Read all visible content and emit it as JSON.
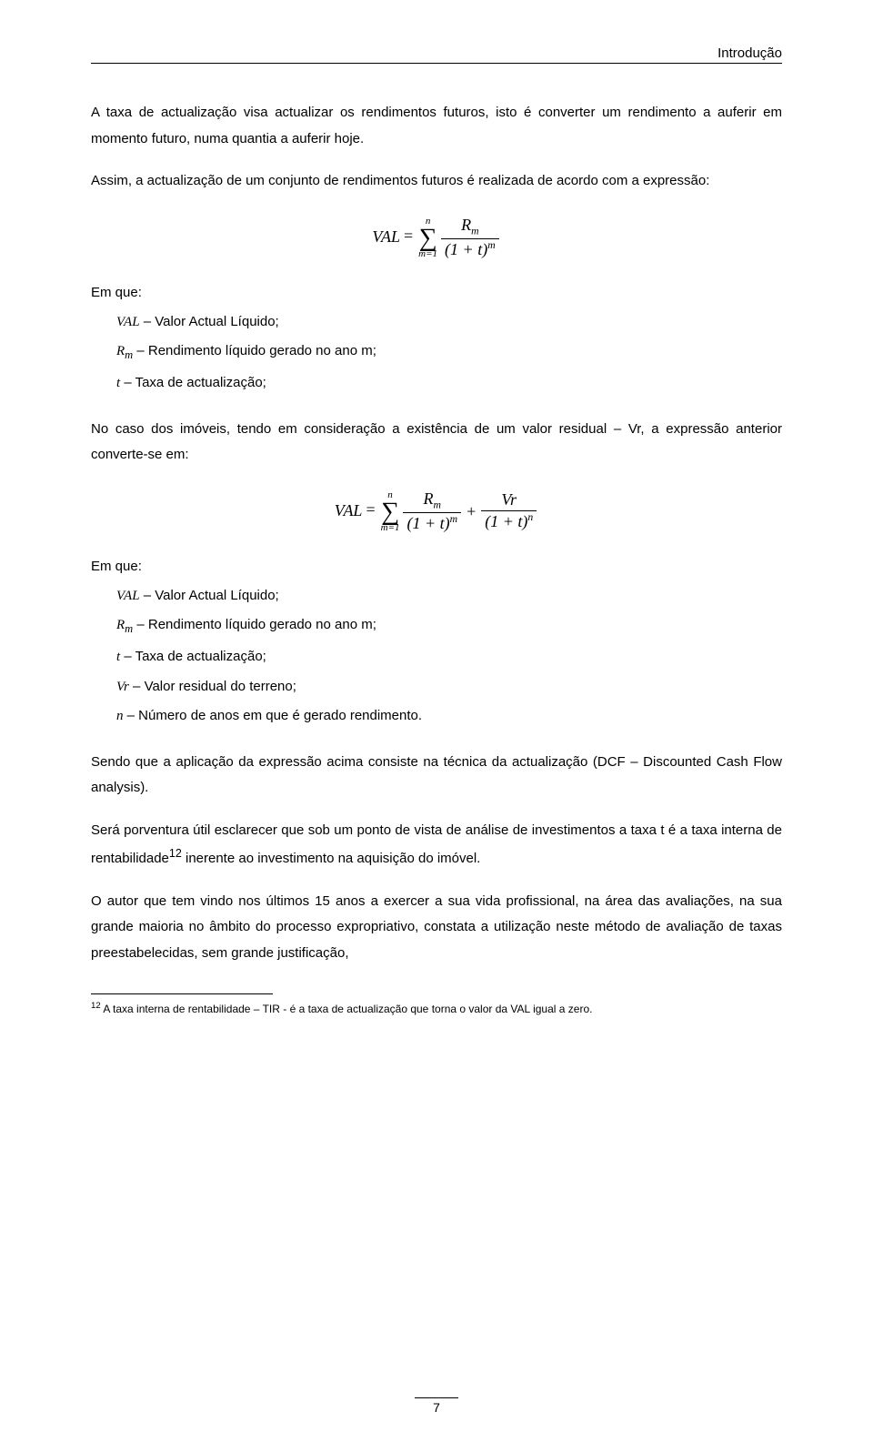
{
  "header": {
    "section": "Introdução"
  },
  "p1": "A taxa de actualização visa actualizar os rendimentos futuros, isto é converter um rendimento a auferir em momento futuro, numa quantia a auferir hoje.",
  "p2": "Assim, a actualização de um conjunto de rendimentos futuros é realizada de acordo com a expressão:",
  "formula1": {
    "lhs": "VAL",
    "sum_top": "n",
    "sum_bot": "m=1",
    "frac_num_base": "R",
    "frac_num_sub": "m",
    "frac_den_base": "(1 + t)",
    "frac_den_sup": "m"
  },
  "defs1": {
    "lead": "Em que:",
    "items": [
      {
        "var": "VAL",
        "desc": " – Valor Actual Líquido;"
      },
      {
        "var": "R",
        "sub": "m",
        "desc": " – Rendimento líquido gerado no ano m;"
      },
      {
        "var": "t",
        "desc": " – Taxa de actualização;"
      }
    ]
  },
  "p3": "No caso dos imóveis, tendo em consideração a existência de um valor residual – Vr, a expressão anterior converte-se em:",
  "formula2": {
    "lhs": "VAL",
    "sum_top": "n",
    "sum_bot": "m=1",
    "t1_num_base": "R",
    "t1_num_sub": "m",
    "t1_den_base": "(1 + t)",
    "t1_den_sup": "m",
    "t2_num": "Vr",
    "t2_den_base": "(1 + t)",
    "t2_den_sup": "n"
  },
  "defs2": {
    "lead": "Em que:",
    "items": [
      {
        "var": "VAL",
        "desc": " – Valor Actual Líquido;"
      },
      {
        "var": "R",
        "sub": "m",
        "desc": " – Rendimento líquido gerado no ano m;"
      },
      {
        "var": "t",
        "desc": " – Taxa de actualização;"
      },
      {
        "var": "Vr",
        "desc": " – Valor residual do terreno;"
      },
      {
        "var": "n",
        "desc": " – Número de anos em que é gerado rendimento."
      }
    ]
  },
  "p4": "Sendo que a aplicação da expressão acima consiste na técnica da actualização (DCF – Discounted Cash Flow analysis).",
  "p5_pre": "Será porventura útil esclarecer que sob um ponto de vista de análise de investimentos a taxa t é a taxa interna de rentabilidade",
  "p5_fn": "12",
  "p5_post": " inerente ao investimento na aquisição do imóvel.",
  "p6": "O autor que tem vindo nos últimos 15 anos a exercer a sua vida profissional, na área das avaliações, na sua grande maioria no âmbito do processo expropriativo, constata a utilização neste método de avaliação de taxas preestabelecidas, sem grande justificação,",
  "footnote": {
    "num": "12",
    "text": " A taxa interna de rentabilidade – TIR - é a taxa de actualização que torna o valor da VAL igual a zero."
  },
  "pagenum": "7"
}
